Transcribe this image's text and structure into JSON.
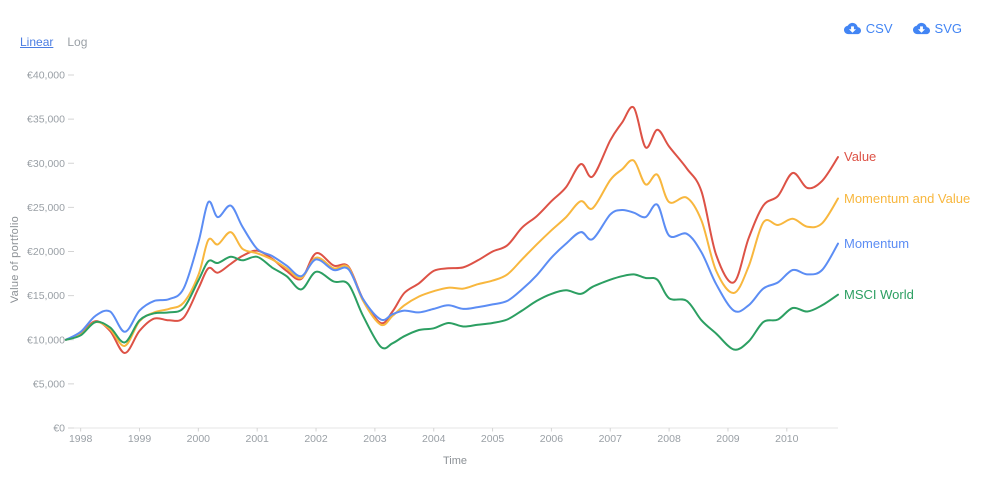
{
  "toolbar": {
    "linear_label": "Linear",
    "log_label": "Log"
  },
  "export": {
    "csv_label": "CSV",
    "svg_label": "SVG"
  },
  "accent_color": "#4285f4",
  "chart_data": {
    "type": "line",
    "title": "",
    "xlabel": "Time",
    "ylabel": "Value of portfolio",
    "grid": false,
    "legend_position": "right-of-line-ends",
    "xlim": [
      1997.7,
      2010.87
    ],
    "ylim": [
      0,
      40000
    ],
    "x_ticks": [
      1998,
      1999,
      2000,
      2001,
      2002,
      2003,
      2004,
      2005,
      2006,
      2007,
      2008,
      2009,
      2010
    ],
    "y_ticks": [
      0,
      5000,
      10000,
      15000,
      20000,
      25000,
      30000,
      35000,
      40000
    ],
    "y_tick_prefix": "€",
    "x": [
      1997.75,
      1998.0,
      1998.25,
      1998.5,
      1998.75,
      1999.0,
      1999.25,
      1999.5,
      1999.75,
      2000.0,
      2000.17,
      2000.33,
      2000.55,
      2000.75,
      2001.0,
      2001.25,
      2001.5,
      2001.75,
      2002.0,
      2002.3,
      2002.55,
      2002.8,
      2003.1,
      2003.3,
      2003.5,
      2003.75,
      2004.0,
      2004.25,
      2004.5,
      2004.75,
      2005.0,
      2005.25,
      2005.5,
      2005.75,
      2006.0,
      2006.25,
      2006.5,
      2006.7,
      2007.0,
      2007.2,
      2007.4,
      2007.6,
      2007.8,
      2008.0,
      2008.3,
      2008.55,
      2008.8,
      2009.1,
      2009.35,
      2009.6,
      2009.85,
      2010.1,
      2010.35,
      2010.6,
      2010.87
    ],
    "series": [
      {
        "name": "Value",
        "color": "#dd5246",
        "values": [
          10000,
          10700,
          12100,
          11000,
          8500,
          11000,
          12400,
          12200,
          12500,
          15800,
          18100,
          17600,
          18600,
          19500,
          20100,
          19200,
          17800,
          16900,
          19800,
          18400,
          18300,
          14600,
          11900,
          13200,
          15300,
          16400,
          17800,
          18100,
          18200,
          19000,
          20000,
          20700,
          22700,
          24000,
          25700,
          27300,
          29900,
          28500,
          32600,
          34600,
          36300,
          31800,
          33800,
          31900,
          29400,
          26800,
          19600,
          16500,
          21500,
          25200,
          26300,
          28900,
          27200,
          28000,
          30700
        ]
      },
      {
        "name": "Momentum and Value",
        "color": "#f8b73e",
        "values": [
          10000,
          10600,
          12000,
          11200,
          9300,
          12100,
          13100,
          13500,
          14200,
          17300,
          21300,
          20800,
          22200,
          20300,
          19800,
          19100,
          18100,
          17000,
          19300,
          18100,
          18200,
          14400,
          11700,
          12700,
          13900,
          14900,
          15500,
          15900,
          15800,
          16300,
          16700,
          17400,
          19100,
          20800,
          22400,
          23900,
          25700,
          24900,
          28100,
          29300,
          30300,
          27600,
          28700,
          25600,
          26100,
          23500,
          17800,
          15300,
          18300,
          23300,
          23000,
          23700,
          22800,
          23200,
          26000
        ]
      },
      {
        "name": "Momentum",
        "color": "#5c8df4",
        "values": [
          10000,
          10900,
          12700,
          13200,
          10900,
          13300,
          14400,
          14600,
          15800,
          21000,
          25600,
          23900,
          25200,
          22800,
          20300,
          19500,
          18400,
          17200,
          19100,
          17900,
          18000,
          14600,
          12300,
          12900,
          13300,
          13100,
          13500,
          13900,
          13500,
          13700,
          14000,
          14400,
          15700,
          17300,
          19300,
          20900,
          22200,
          21400,
          24200,
          24700,
          24400,
          23900,
          25300,
          21800,
          22000,
          19900,
          16300,
          13300,
          13900,
          15800,
          16500,
          17900,
          17400,
          17900,
          20900
        ]
      },
      {
        "name": "MSCI World",
        "color": "#2c9f62",
        "values": [
          10000,
          10500,
          12000,
          11400,
          9700,
          12200,
          13000,
          13100,
          13600,
          16700,
          18900,
          18700,
          19400,
          19000,
          19400,
          18200,
          17200,
          15700,
          17700,
          16600,
          16300,
          12700,
          9200,
          9600,
          10400,
          11100,
          11300,
          11900,
          11500,
          11700,
          11900,
          12300,
          13300,
          14400,
          15200,
          15600,
          15200,
          16000,
          16800,
          17200,
          17400,
          17000,
          16800,
          14700,
          14400,
          12200,
          10700,
          8900,
          9800,
          12000,
          12300,
          13600,
          13200,
          13900,
          15100
        ]
      }
    ]
  }
}
